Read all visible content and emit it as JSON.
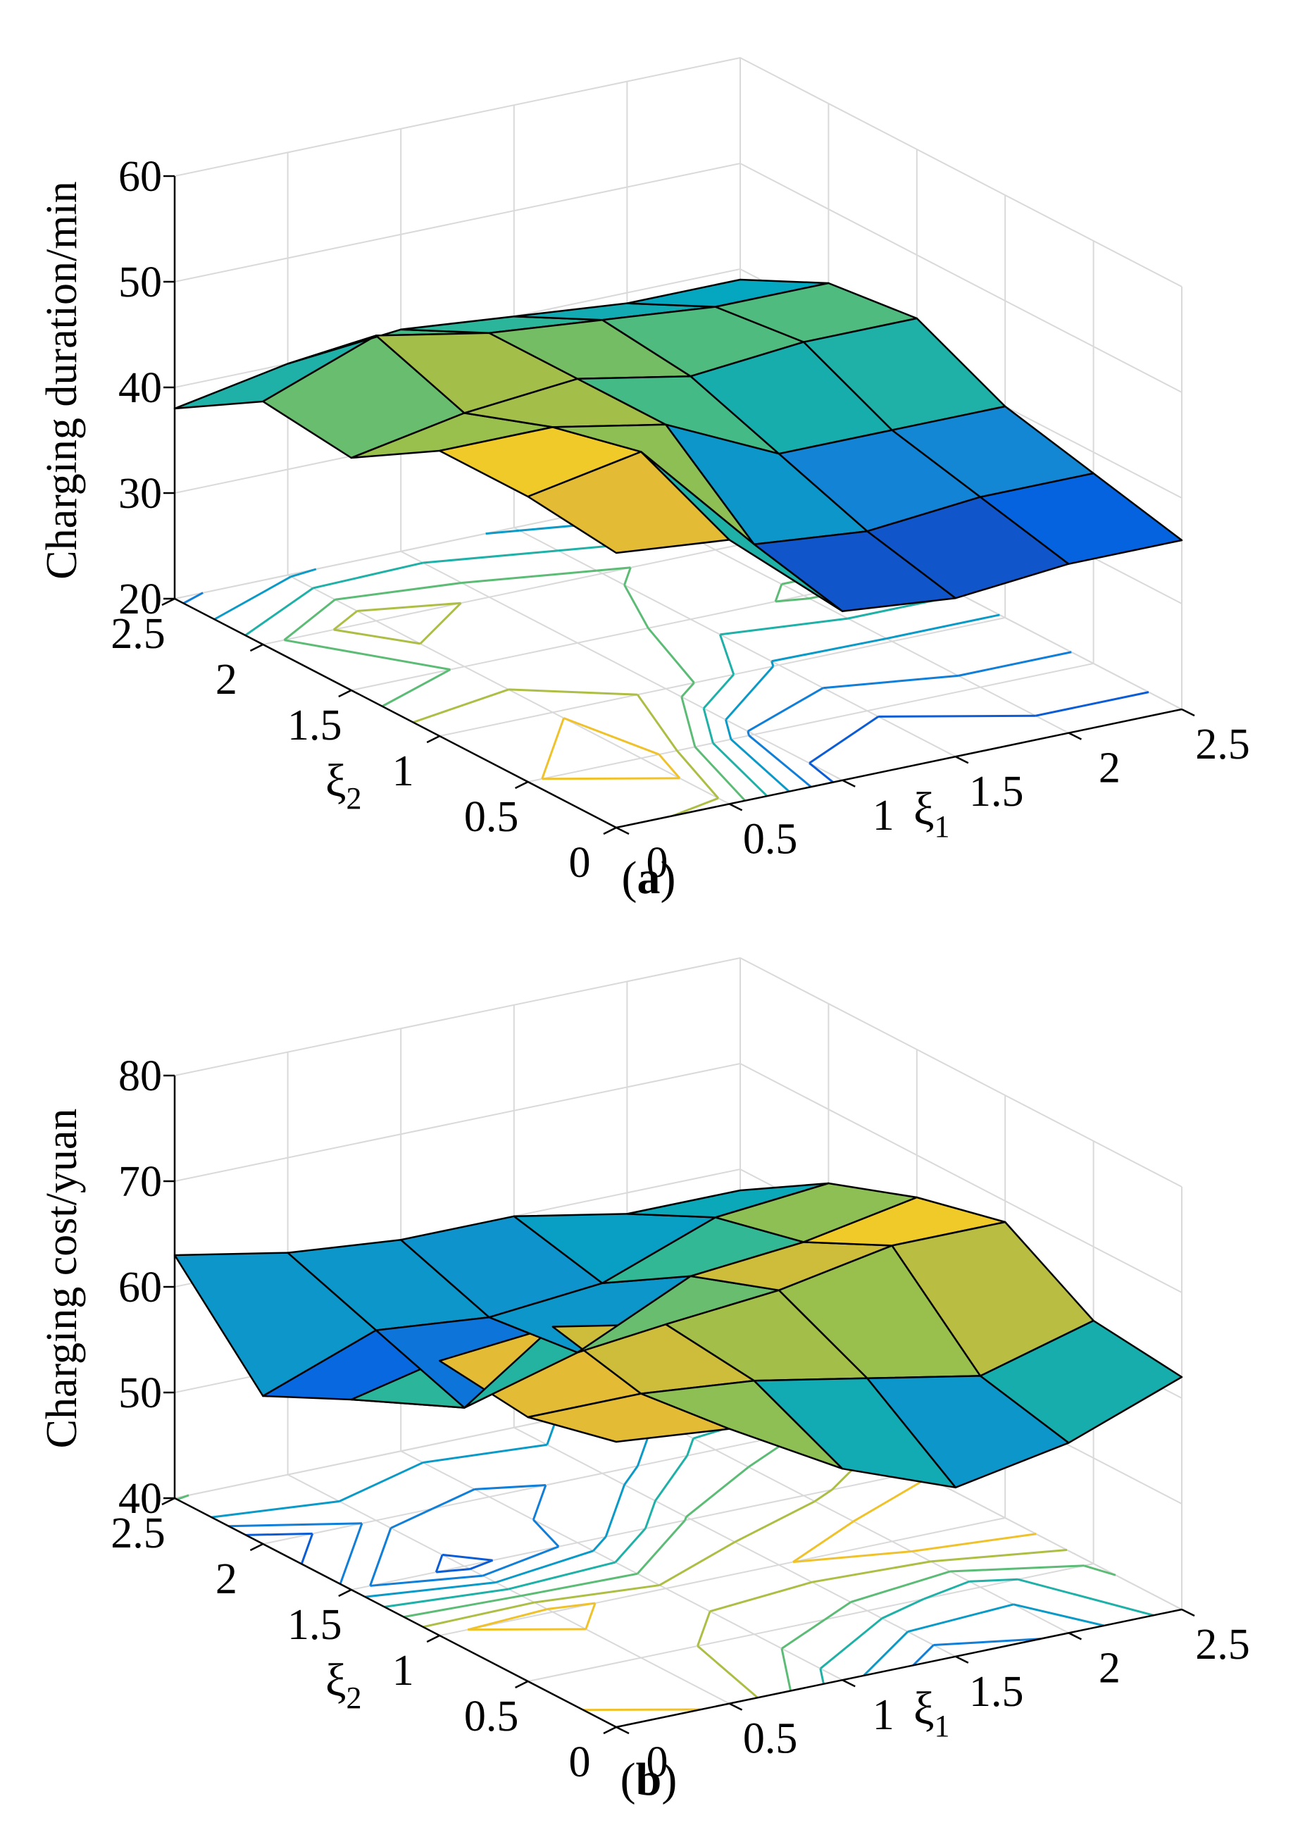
{
  "figure": {
    "panels": [
      {
        "id": "a",
        "caption_open": "(",
        "caption_letter": "a",
        "caption_close": ")"
      },
      {
        "id": "b",
        "caption_open": "(",
        "caption_letter": "b",
        "caption_close": ")"
      }
    ],
    "axis_text": {
      "xi": "ξ",
      "sub1": "1",
      "sub2": "2"
    }
  },
  "chart_data": [
    {
      "type": "surface3d",
      "panel": "a",
      "zlabel": "Charging duration/min",
      "xlabel": "ξ1",
      "ylabel": "ξ2",
      "x_ticks": [
        "0",
        "0.5",
        "1",
        "1.5",
        "2",
        "2.5"
      ],
      "y_ticks": [
        "0",
        "0.5",
        "1",
        "1.5",
        "2",
        "2.5"
      ],
      "z_ticks": [
        "20",
        "30",
        "40",
        "50",
        "60"
      ],
      "xlim": [
        0,
        2.5
      ],
      "ylim": [
        0,
        2.5
      ],
      "zlim": [
        20,
        60
      ],
      "grid": true,
      "contour_projection": true,
      "x": [
        0,
        0.5,
        1,
        1.5,
        2,
        2.5
      ],
      "y": [
        0,
        0.5,
        1,
        1.5,
        2,
        2.5
      ],
      "z_rows_by_xi2": [
        [
          46,
          45,
          36,
          35,
          36,
          36
        ],
        [
          47,
          49,
          38,
          37,
          38,
          38
        ],
        [
          47,
          47,
          45,
          40,
          40,
          40
        ],
        [
          42,
          44,
          45,
          43,
          44,
          44
        ],
        [
          43,
          47,
          45,
          44,
          43,
          43
        ],
        [
          38,
          40,
          41,
          40,
          39,
          39
        ]
      ]
    },
    {
      "type": "surface3d",
      "panel": "b",
      "zlabel": "Charging cost/yuan",
      "xlabel": "ξ1",
      "ylabel": "ξ2",
      "x_ticks": [
        "0",
        "0.5",
        "1",
        "1.5",
        "2",
        "2.5"
      ],
      "y_ticks": [
        "0",
        "0.5",
        "1",
        "1.5",
        "2",
        "2.5"
      ],
      "z_ticks": [
        "40",
        "50",
        "60",
        "70",
        "80"
      ],
      "xlim": [
        0,
        2.5
      ],
      "ylim": [
        0,
        2.5
      ],
      "zlim": [
        40,
        80
      ],
      "grid": true,
      "contour_projection": true,
      "x": [
        0,
        0.5,
        1,
        1.5,
        2,
        2.5
      ],
      "y": [
        0,
        0.5,
        1,
        1.5,
        2,
        2.5
      ],
      "z_rows_by_xi2": [
        [
          67,
          66,
          60,
          56,
          58,
          62
        ],
        [
          65,
          65,
          64,
          62,
          60,
          63
        ],
        [
          66,
          67,
          65,
          66,
          68,
          68
        ],
        [
          58,
          55,
          58,
          63,
          64,
          66
        ],
        [
          54,
          58,
          57,
          58,
          62,
          63
        ],
        [
          63,
          61,
          60,
          60,
          58,
          58
        ]
      ]
    }
  ]
}
